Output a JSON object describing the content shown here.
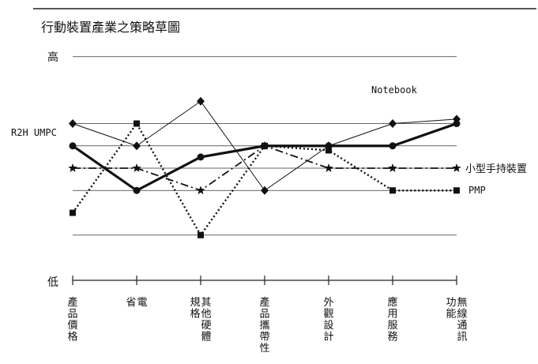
{
  "chart_data": {
    "type": "line",
    "title": "行動裝置產業之策略草圖",
    "y_high_label": "高",
    "y_low_label": "低",
    "ylim": [
      0,
      5
    ],
    "grid": true,
    "categories": [
      "產品價格",
      "省電",
      "規格其他硬體",
      "產品攜帶性",
      "外觀設計",
      "應用服務",
      "功能無線通訊"
    ],
    "category_lines": [
      [
        "產品價格"
      ],
      [
        "省",
        "電"
      ],
      [
        "規格",
        "其他硬體"
      ],
      [
        "產品攜帶性"
      ],
      [
        "外觀設計"
      ],
      [
        "應用服務"
      ],
      [
        "功能",
        "無線通訊"
      ]
    ],
    "series": [
      {
        "name": "Notebook",
        "style": "thin-solid",
        "marker": "diamond",
        "values": [
          3.0,
          2.5,
          3.5,
          1.5,
          2.5,
          3.0,
          3.1
        ]
      },
      {
        "name": "R2H UMPC",
        "style": "thick-solid",
        "marker": "circle",
        "values": [
          2.5,
          1.5,
          2.25,
          2.5,
          2.5,
          2.5,
          3.0
        ]
      },
      {
        "name": "小型手持裝置",
        "style": "dash-dot",
        "marker": "star",
        "values": [
          2.0,
          2.0,
          1.5,
          2.5,
          2.0,
          2.0,
          2.0
        ]
      },
      {
        "name": "PMP",
        "style": "dotted",
        "marker": "square",
        "values": [
          1.0,
          3.0,
          0.5,
          2.5,
          2.4,
          1.5,
          1.5
        ]
      }
    ]
  }
}
